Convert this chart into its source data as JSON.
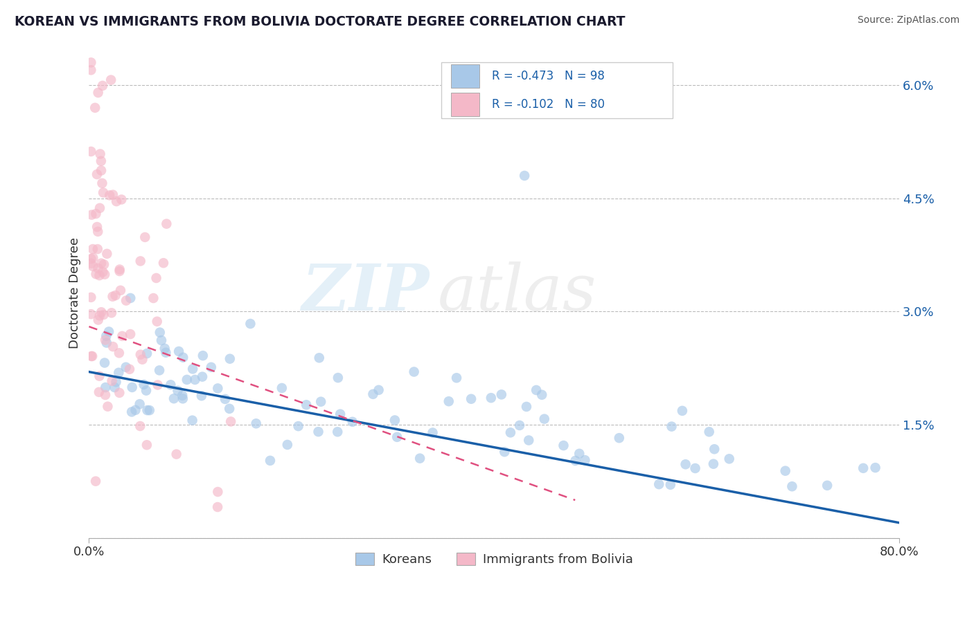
{
  "title": "KOREAN VS IMMIGRANTS FROM BOLIVIA DOCTORATE DEGREE CORRELATION CHART",
  "source": "Source: ZipAtlas.com",
  "ylabel": "Doctorate Degree",
  "watermark_zip": "ZIP",
  "watermark_atlas": "atlas",
  "legend_labels": [
    "Koreans",
    "Immigrants from Bolivia"
  ],
  "r_values": [
    -0.473,
    -0.102
  ],
  "n_values": [
    98,
    80
  ],
  "xlim": [
    0.0,
    0.8
  ],
  "ylim": [
    0.0,
    0.065
  ],
  "yticks": [
    0.0,
    0.015,
    0.03,
    0.045,
    0.06
  ],
  "ytick_labels": [
    "",
    "1.5%",
    "3.0%",
    "4.5%",
    "6.0%"
  ],
  "blue_fill": "#a8c8e8",
  "pink_fill": "#f4b8c8",
  "blue_line_color": "#1a5fa8",
  "pink_line_color": "#e05080",
  "background_color": "#ffffff",
  "grid_color": "#bbbbbb",
  "title_color": "#1a1a2e",
  "axis_label_color": "#333333",
  "right_tick_color": "#1a5fa8",
  "legend_text_color": "#1a5fa8",
  "source_color": "#555555"
}
